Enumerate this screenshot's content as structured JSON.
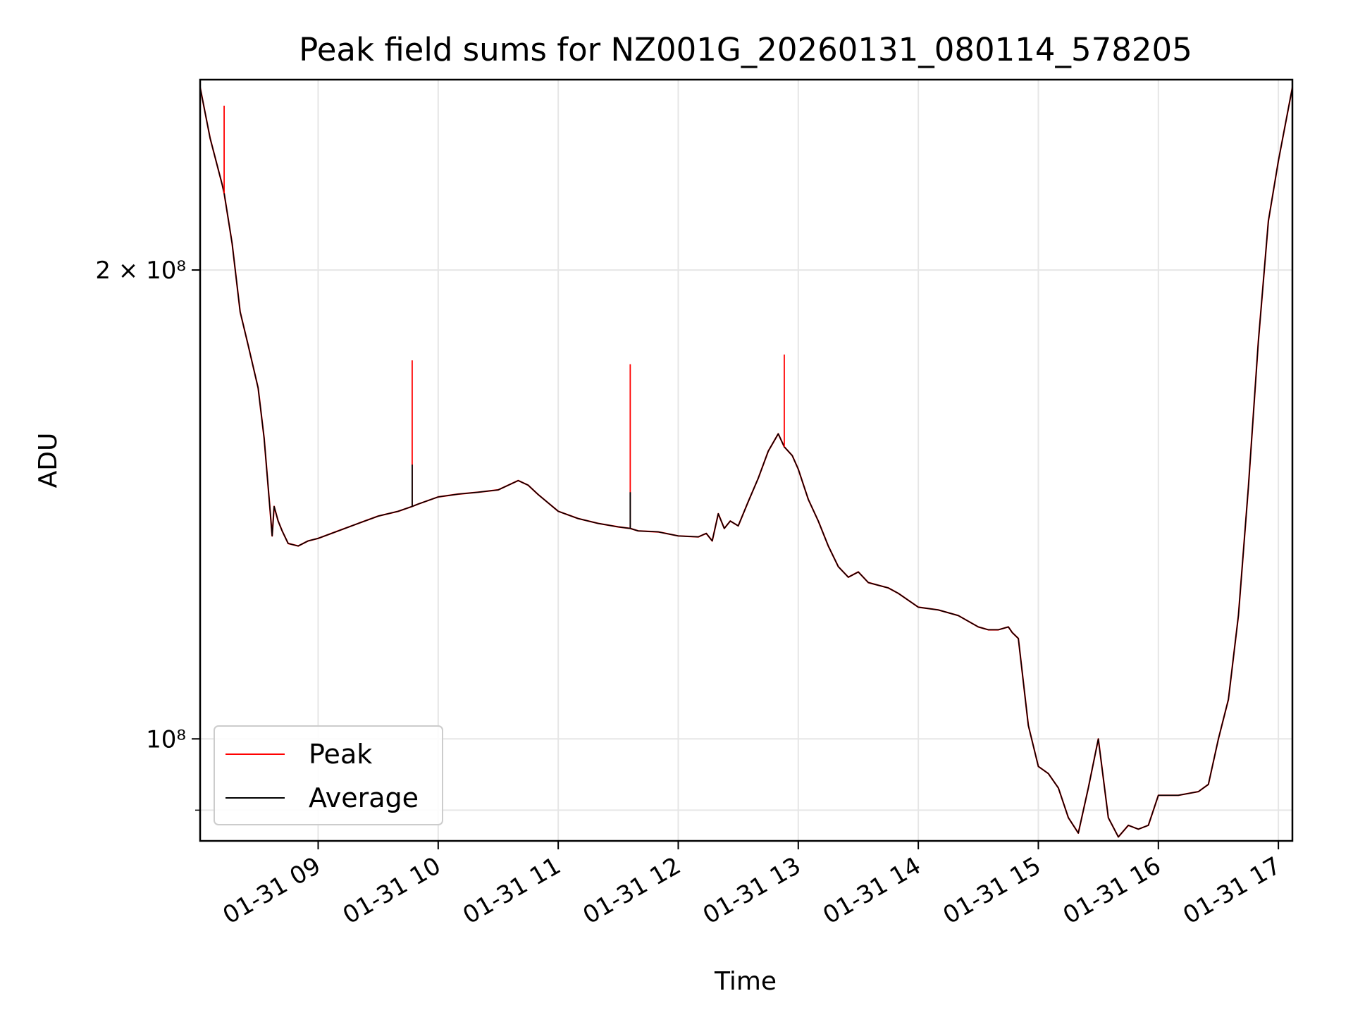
{
  "chart_data": {
    "type": "line",
    "title": "Peak field sums for NZ001G_20260131_080114_578205",
    "xlabel": "Time",
    "ylabel": "ADU",
    "y_scale": "log",
    "ylim": [
      86000000,
      265000000
    ],
    "xlim": [
      "01-31 08:01",
      "01-31 17:07"
    ],
    "grid": true,
    "legend_position": "lower-left",
    "x_ticks": [
      "01-31 09",
      "01-31 10",
      "01-31 11",
      "01-31 12",
      "01-31 13",
      "01-31 14",
      "01-31 15",
      "01-31 16",
      "01-31 17"
    ],
    "y_ticks": [
      {
        "value": 200000000,
        "label": "2 × 10⁸"
      },
      {
        "value": 100000000,
        "label": "10⁸"
      }
    ],
    "y_minor_ticks": [
      90000000
    ],
    "x": [
      "01-31 08:01",
      "01-31 08:06",
      "01-31 08:12",
      "01-31 08:13",
      "01-31 08:17",
      "01-31 08:21",
      "01-31 08:25",
      "01-31 08:30",
      "01-31 08:33",
      "01-31 08:36",
      "01-31 08:37",
      "01-31 08:38",
      "01-31 08:40",
      "01-31 08:42",
      "01-31 08:45",
      "01-31 08:50",
      "01-31 08:55",
      "01-31 09:00",
      "01-31 09:10",
      "01-31 09:20",
      "01-31 09:30",
      "01-31 09:40",
      "01-31 09:47",
      "01-31 09:50",
      "01-31 10:00",
      "01-31 10:10",
      "01-31 10:20",
      "01-31 10:30",
      "01-31 10:40",
      "01-31 10:45",
      "01-31 10:50",
      "01-31 11:00",
      "01-31 11:10",
      "01-31 11:20",
      "01-31 11:30",
      "01-31 11:36",
      "01-31 11:40",
      "01-31 11:50",
      "01-31 12:00",
      "01-31 12:10",
      "01-31 12:14",
      "01-31 12:17",
      "01-31 12:20",
      "01-31 12:23",
      "01-31 12:26",
      "01-31 12:30",
      "01-31 12:35",
      "01-31 12:40",
      "01-31 12:45",
      "01-31 12:50",
      "01-31 12:53",
      "01-31 12:57",
      "01-31 13:00",
      "01-31 13:05",
      "01-31 13:10",
      "01-31 13:15",
      "01-31 13:20",
      "01-31 13:25",
      "01-31 13:30",
      "01-31 13:35",
      "01-31 13:40",
      "01-31 13:45",
      "01-31 13:50",
      "01-31 14:00",
      "01-31 14:10",
      "01-31 14:20",
      "01-31 14:30",
      "01-31 14:35",
      "01-31 14:40",
      "01-31 14:45",
      "01-31 14:47",
      "01-31 14:50",
      "01-31 14:55",
      "01-31 15:00",
      "01-31 15:05",
      "01-31 15:10",
      "01-31 15:15",
      "01-31 15:20",
      "01-31 15:25",
      "01-31 15:30",
      "01-31 15:35",
      "01-31 15:40",
      "01-31 15:45",
      "01-31 15:50",
      "01-31 15:55",
      "01-31 16:00",
      "01-31 16:10",
      "01-31 16:20",
      "01-31 16:25",
      "01-31 16:30",
      "01-31 16:35",
      "01-31 16:40",
      "01-31 16:45",
      "01-31 16:50",
      "01-31 16:55",
      "01-31 17:00",
      "01-31 17:07"
    ],
    "series": [
      {
        "name": "Peak",
        "color": "#ff0000",
        "values": [
          262000000,
          243000000,
          227000000,
          224000000,
          208000000,
          188000000,
          179000000,
          168000000,
          156000000,
          140000000,
          135000000,
          141000000,
          138000000,
          136000000,
          133500000,
          133000000,
          134000000,
          134500000,
          136000000,
          137500000,
          139000000,
          140000000,
          141000000,
          141500000,
          143000000,
          143600000,
          144000000,
          144500000,
          146500000,
          145500000,
          143500000,
          140000000,
          138500000,
          137500000,
          136800000,
          136500000,
          136000000,
          135800000,
          135000000,
          134800000,
          135500000,
          134000000,
          139500000,
          136500000,
          138000000,
          137000000,
          142000000,
          147000000,
          153000000,
          157000000,
          154000000,
          152000000,
          149000000,
          142500000,
          138000000,
          133000000,
          129000000,
          127000000,
          128000000,
          126000000,
          125500000,
          125000000,
          124000000,
          121500000,
          121000000,
          120000000,
          118000000,
          117500000,
          117500000,
          118000000,
          117000000,
          116000000,
          102000000,
          96000000,
          95000000,
          93000000,
          89000000,
          87000000,
          93000000,
          100000000,
          89000000,
          86500000,
          88000000,
          87500000,
          88000000,
          92000000,
          92000000,
          92500000,
          93500000,
          100000000,
          106000000,
          120000000,
          145000000,
          180000000,
          215000000,
          235000000,
          262000000
        ]
      },
      {
        "name": "Average",
        "color": "#000000",
        "values": [
          262000000,
          243000000,
          227000000,
          224000000,
          208000000,
          188000000,
          179000000,
          168000000,
          156000000,
          140000000,
          135000000,
          141000000,
          138000000,
          136000000,
          133500000,
          133000000,
          134000000,
          134500000,
          136000000,
          137500000,
          139000000,
          140000000,
          141000000,
          141500000,
          143000000,
          143600000,
          144000000,
          144500000,
          146500000,
          145500000,
          143500000,
          140000000,
          138500000,
          137500000,
          136800000,
          136500000,
          136000000,
          135800000,
          135000000,
          134800000,
          135500000,
          134000000,
          139500000,
          136500000,
          138000000,
          137000000,
          142000000,
          147000000,
          153000000,
          157000000,
          154000000,
          152000000,
          149000000,
          142500000,
          138000000,
          133000000,
          129000000,
          127000000,
          128000000,
          126000000,
          125500000,
          125000000,
          124000000,
          121500000,
          121000000,
          120000000,
          118000000,
          117500000,
          117500000,
          118000000,
          117000000,
          116000000,
          102000000,
          96000000,
          95000000,
          93000000,
          89000000,
          87000000,
          93000000,
          100000000,
          89000000,
          86500000,
          88000000,
          87500000,
          88000000,
          92000000,
          92000000,
          92500000,
          93500000,
          100000000,
          106000000,
          120000000,
          145000000,
          180000000,
          215000000,
          235000000,
          262000000
        ]
      }
    ],
    "peak_spikes": [
      {
        "x": "01-31 08:13",
        "value": 255000000
      },
      {
        "x": "01-31 09:47",
        "value": 175000000
      },
      {
        "x": "01-31 11:36",
        "value": 174000000
      },
      {
        "x": "01-31 12:53",
        "value": 176500000
      }
    ],
    "average_spikes": [
      {
        "x": "01-31 09:47",
        "value": 150000000
      },
      {
        "x": "01-31 11:36",
        "value": 144000000
      }
    ]
  }
}
